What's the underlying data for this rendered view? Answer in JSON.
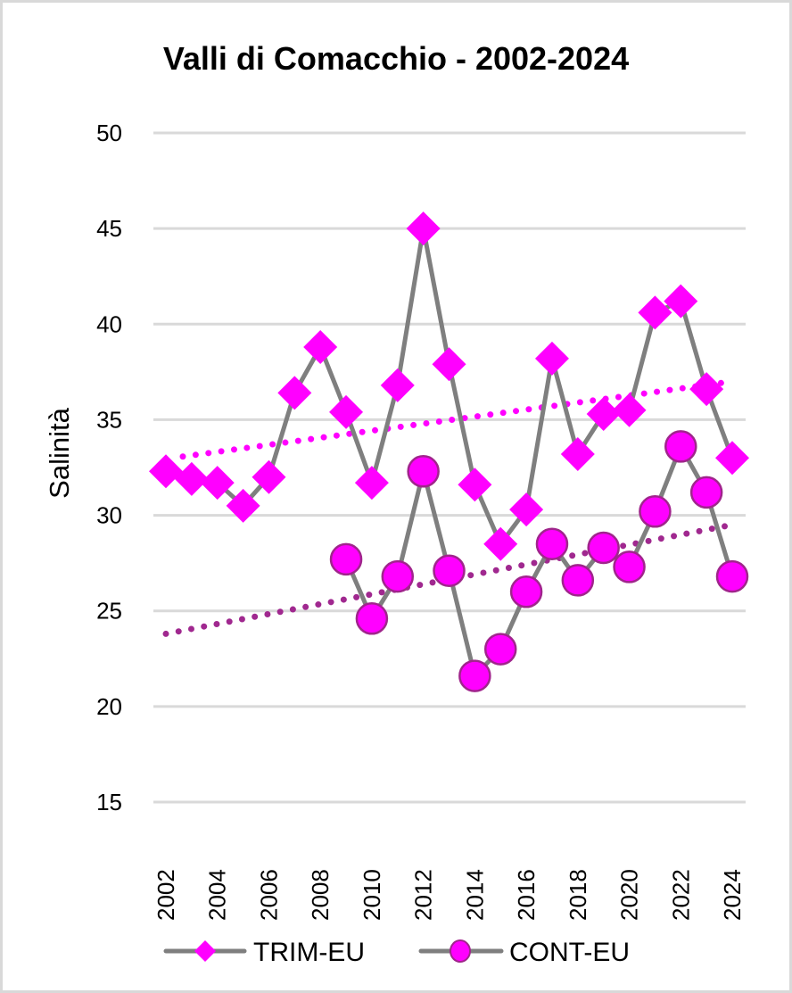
{
  "chart_data": {
    "type": "line",
    "title": "Valli di Comacchio - 2002-2024",
    "xlabel": "",
    "ylabel": "Salinità",
    "ylim": [
      15,
      50
    ],
    "yticks": [
      15,
      20,
      25,
      30,
      35,
      40,
      45,
      50
    ],
    "x": [
      2002,
      2003,
      2004,
      2005,
      2006,
      2007,
      2008,
      2009,
      2010,
      2011,
      2012,
      2013,
      2014,
      2015,
      2016,
      2017,
      2018,
      2019,
      2020,
      2021,
      2022,
      2023,
      2024
    ],
    "xtick_labels": [
      "2002",
      "2004",
      "2006",
      "2008",
      "2010",
      "2012",
      "2014",
      "2016",
      "2018",
      "2020",
      "2022",
      "2024"
    ],
    "grid": true,
    "legend_position": "bottom",
    "series": [
      {
        "name": "TRIM-EU",
        "marker": "diamond",
        "marker_color": "#ff00ff",
        "line_color": "#7f7f7f",
        "values": [
          32.3,
          31.9,
          31.7,
          30.5,
          32.0,
          36.4,
          38.8,
          35.4,
          31.7,
          36.8,
          45.0,
          37.9,
          31.6,
          28.5,
          30.3,
          38.2,
          33.2,
          35.3,
          35.5,
          40.6,
          41.2,
          36.6,
          33.0
        ]
      },
      {
        "name": "CONT-EU",
        "marker": "circle",
        "marker_color": "#ff00ff",
        "marker_edge_color": "#a0258c",
        "line_color": "#7f7f7f",
        "values": [
          null,
          null,
          null,
          null,
          null,
          null,
          null,
          27.7,
          24.6,
          26.8,
          32.3,
          27.1,
          21.6,
          23.0,
          26.0,
          28.5,
          26.6,
          28.3,
          27.3,
          30.2,
          33.6,
          31.2,
          26.8
        ]
      }
    ],
    "trendlines": [
      {
        "series": "TRIM-EU",
        "type": "linear",
        "style": "dotted",
        "color": "#ff00ff",
        "x_range": [
          2002,
          2024
        ],
        "y_range": [
          32.95,
          37.0
        ]
      },
      {
        "series": "CONT-EU",
        "type": "linear",
        "style": "dotted",
        "color": "#a0288f",
        "x_range": [
          2002,
          2024
        ],
        "y_range": [
          23.8,
          29.5
        ]
      }
    ]
  }
}
